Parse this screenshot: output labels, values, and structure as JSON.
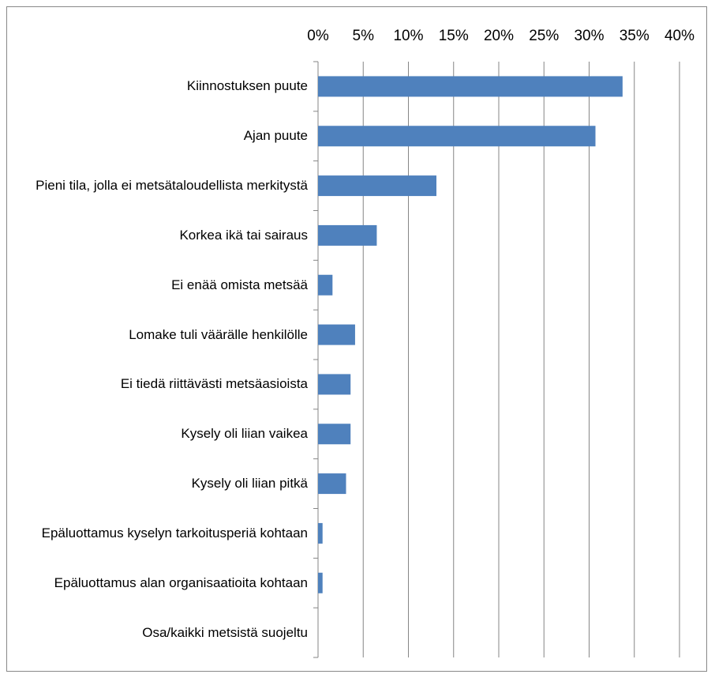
{
  "chart_data": {
    "type": "bar",
    "orientation": "horizontal",
    "categories": [
      "Kiinnostuksen puute",
      "Ajan puute",
      "Pieni tila, jolla ei metsätaloudellista merkitystä",
      "Korkea ikä tai sairaus",
      "Ei enää omista metsää",
      "Lomake tuli väärälle henkilölle",
      "Ei tiedä riittävästi metsäasioista",
      "Kysely oli liian vaikea",
      "Kysely oli liian pitkä",
      "Epäluottamus kyselyn tarkoitusperiä kohtaan",
      "Epäluottamus alan organisaatioita kohtaan",
      "Osa/kaikki metsistä suojeltu"
    ],
    "values": [
      33.7,
      30.7,
      13.1,
      6.5,
      1.6,
      4.1,
      3.6,
      3.6,
      3.1,
      0.5,
      0.5,
      0
    ],
    "color": "#4f81bd",
    "xlim": [
      0,
      40
    ],
    "xticks": [
      {
        "value": 0,
        "label": "0%"
      },
      {
        "value": 5,
        "label": "5%"
      },
      {
        "value": 10,
        "label": "10%"
      },
      {
        "value": 15,
        "label": "15%"
      },
      {
        "value": 20,
        "label": "20%"
      },
      {
        "value": 25,
        "label": "25%"
      },
      {
        "value": 30,
        "label": "30%"
      },
      {
        "value": 35,
        "label": "35%"
      },
      {
        "value": 40,
        "label": "40%"
      }
    ],
    "grid": true
  }
}
